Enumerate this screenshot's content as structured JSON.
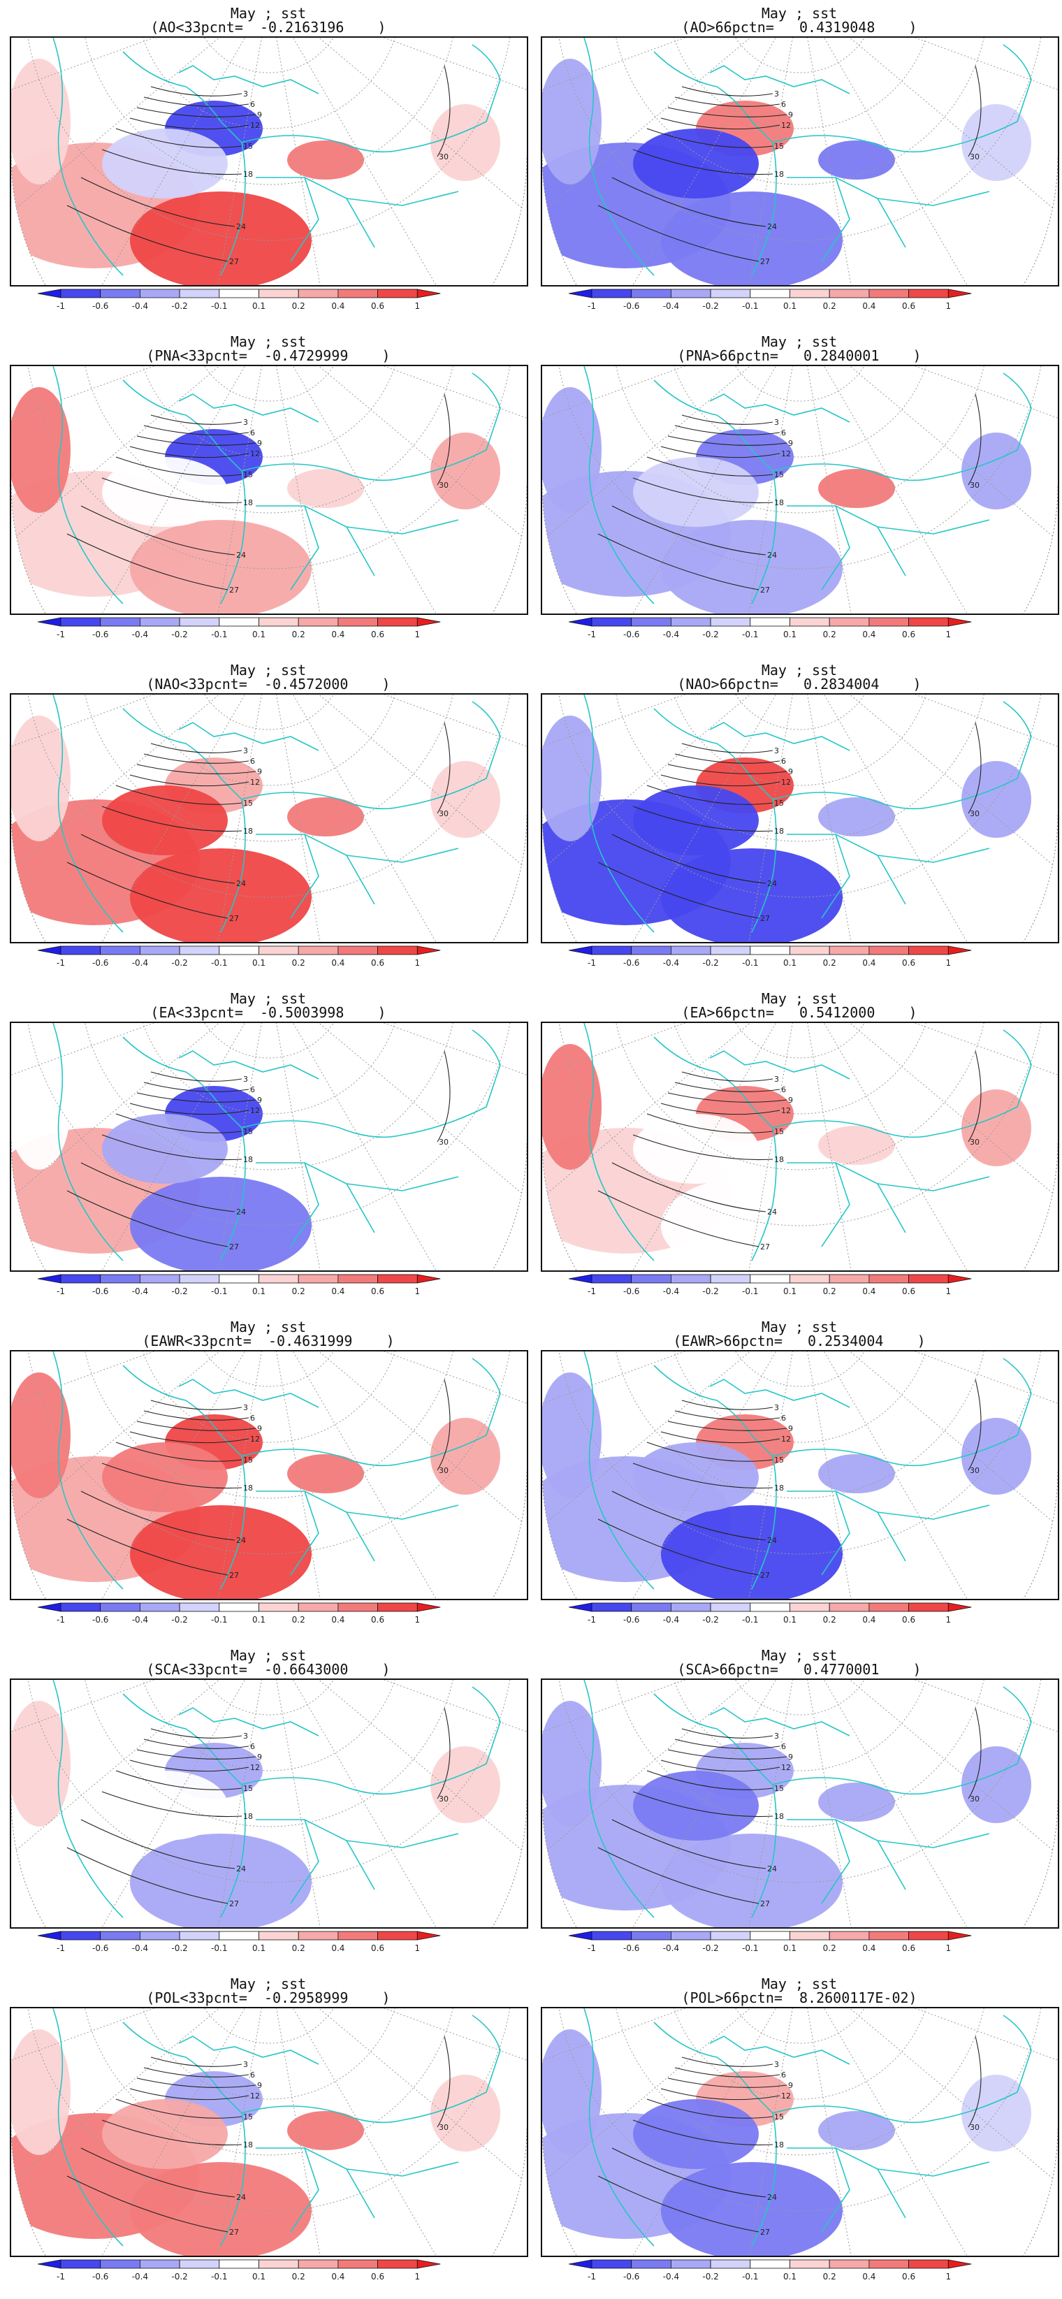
{
  "colorbar": {
    "labels": [
      "-1",
      "-0.6",
      "-0.4",
      "-0.2",
      "-0.1",
      "0.1",
      "0.2",
      "0.4",
      "0.6",
      "1"
    ],
    "colors": [
      "#1e1ee8",
      "#4747ef",
      "#7a7af3",
      "#a8a8f6",
      "#d2d2fb",
      "#ffffff",
      "#fbd3d3",
      "#f7a8a8",
      "#f37a7a",
      "#ef4747",
      "#e81e1e"
    ]
  },
  "isoline_labels": [
    "3",
    "6",
    "9",
    "12",
    "15",
    "18",
    "24",
    "27",
    "30"
  ],
  "panels": [
    {
      "line1": "May ; sst",
      "line2": "(AO<33pcnt=  -0.2163196    )",
      "pattern": [
        0.3,
        0.7,
        -0.9,
        -0.1,
        0.6,
        0.2
      ]
    },
    {
      "line1": "May ; sst",
      "line2": "(AO>66pctn=   0.4319048    )",
      "pattern": [
        -0.5,
        -0.4,
        0.5,
        -0.8,
        -0.4,
        -0.2
      ]
    },
    {
      "line1": "May ; sst",
      "line2": "(PNA<33pcnt=  -0.4729999    )",
      "pattern": [
        0.2,
        0.3,
        -0.6,
        0.1,
        0.2,
        0.5
      ]
    },
    {
      "line1": "May ; sst",
      "line2": "(PNA>66pctn=   0.2840001    )",
      "pattern": [
        -0.2,
        -0.3,
        -0.5,
        -0.1,
        0.5,
        -0.3
      ]
    },
    {
      "line1": "May ; sst",
      "line2": "(NAO<33pcnt=  -0.4572000    )",
      "pattern": [
        0.6,
        0.9,
        0.4,
        0.7,
        0.6,
        0.2
      ]
    },
    {
      "line1": "May ; sst",
      "line2": "(NAO>66pctn=   0.2834004    )",
      "pattern": [
        -0.6,
        -0.7,
        0.9,
        -0.6,
        -0.3,
        -0.3
      ]
    },
    {
      "line1": "May ; sst",
      "line2": "(EA<33pcnt=  -0.5003998    )",
      "pattern": [
        0.3,
        -0.5,
        -0.7,
        -0.3,
        0.1,
        0.1
      ]
    },
    {
      "line1": "May ; sst",
      "line2": "(EA>66pctn=   0.5412000    )",
      "pattern": [
        0.2,
        0.1,
        0.6,
        0.1,
        0.2,
        0.5
      ]
    },
    {
      "line1": "May ; sst",
      "line2": "(EAWR<33pcnt=  -0.4631999    )",
      "pattern": [
        0.4,
        0.7,
        0.7,
        0.6,
        0.6,
        0.5
      ]
    },
    {
      "line1": "May ; sst",
      "line2": "(EAWR>66pctn=   0.2534004    )",
      "pattern": [
        -0.3,
        -0.6,
        0.5,
        -0.3,
        -0.2,
        -0.3
      ]
    },
    {
      "line1": "May ; sst",
      "line2": "(SCA<33pcnt=  -0.6643000    )",
      "pattern": [
        0.1,
        -0.3,
        -0.3,
        0.1,
        0.0,
        0.2
      ]
    },
    {
      "line1": "May ; sst",
      "line2": "(SCA>66pctn=   0.4770001    )",
      "pattern": [
        -0.2,
        -0.3,
        -0.3,
        -0.5,
        -0.3,
        -0.3
      ]
    },
    {
      "line1": "May ; sst",
      "line2": "(POL<33pcnt=  -0.2958999    )",
      "pattern": [
        0.6,
        0.5,
        -0.3,
        0.4,
        0.5,
        0.2
      ]
    },
    {
      "line1": "May ; sst",
      "line2": "(POL>66pctn=  8.2600117E-02)",
      "pattern": [
        -0.2,
        -0.4,
        0.4,
        -0.5,
        -0.3,
        -0.2
      ]
    }
  ]
}
